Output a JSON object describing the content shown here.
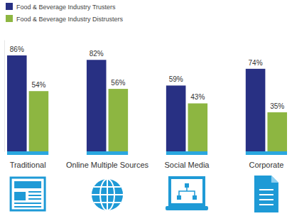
{
  "chart_data": {
    "type": "bar",
    "categories": [
      "Traditional",
      "Online Multiple Sources",
      "Social Media",
      "Corporate"
    ],
    "series": [
      {
        "name": "Food & Beverage Industry Trusters",
        "color": "#283083",
        "values": [
          86,
          82,
          59,
          74
        ],
        "value_labels": [
          "86%",
          "82%",
          "59%",
          "74%"
        ]
      },
      {
        "name": "Food & Beverage Industry Distrusters",
        "color": "#8db641",
        "values": [
          54,
          56,
          43,
          35
        ],
        "value_labels": [
          "54%",
          "56%",
          "43%",
          "35%"
        ]
      }
    ],
    "ylim": [
      0,
      100
    ],
    "tick_labels": "x",
    "data_labels": true,
    "legend": "top-left",
    "grid": false
  }
}
